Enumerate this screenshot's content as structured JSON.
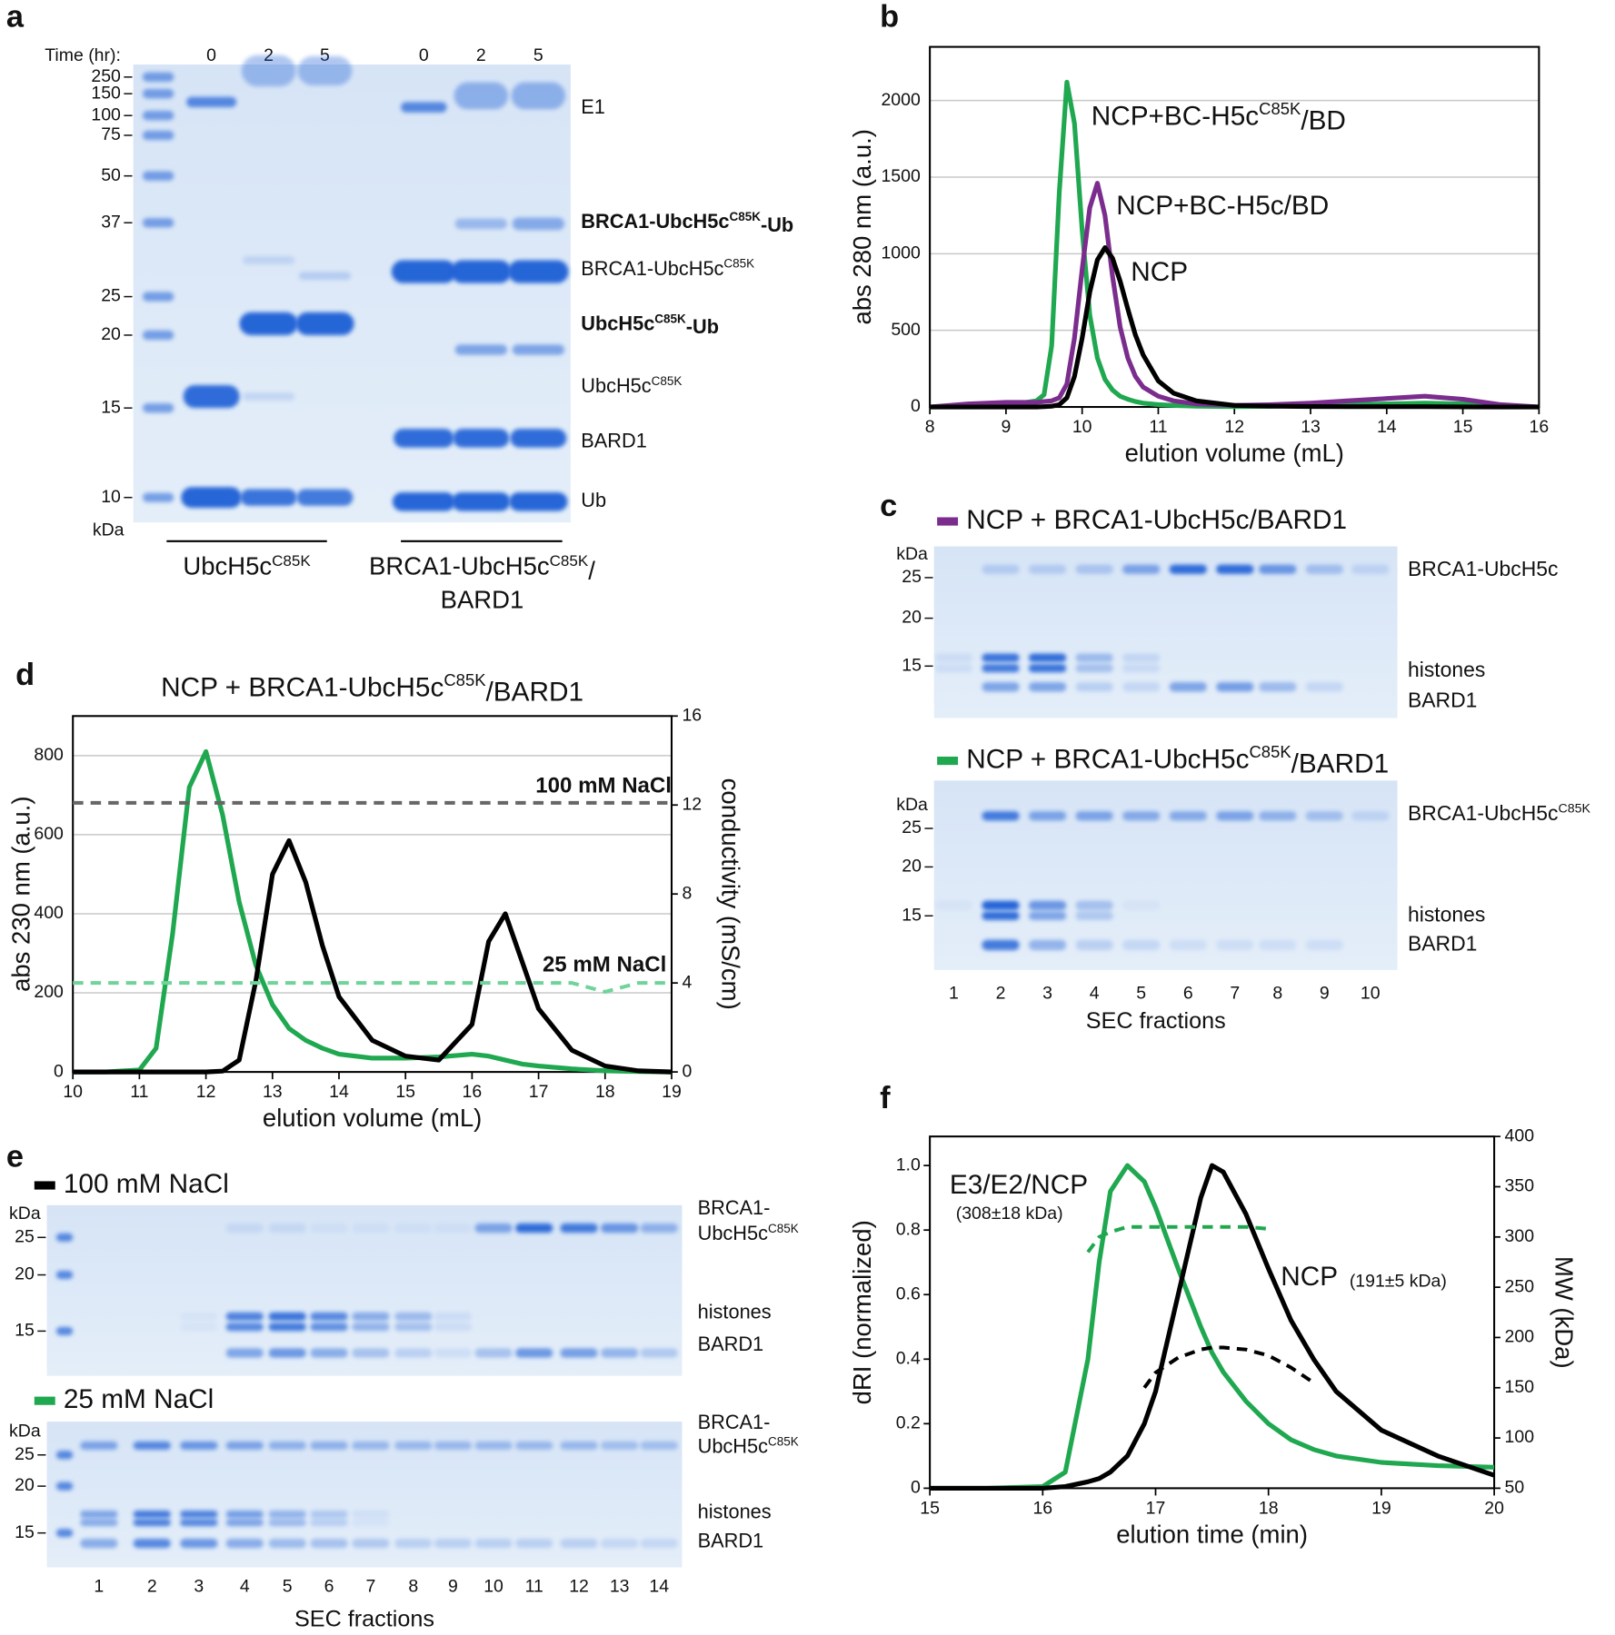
{
  "chart_data": [
    {
      "panel": "b",
      "type": "line",
      "ylabel": "abs 280 nm (a.u.)",
      "xlabel": "elution volume (mL)",
      "x": [
        8,
        8.5,
        9,
        9.2,
        9.4,
        9.5,
        9.6,
        9.7,
        9.8,
        9.9,
        10.0,
        10.1,
        10.2,
        10.3,
        10.4,
        10.5,
        10.6,
        10.7,
        10.8,
        11,
        11.2,
        11.5,
        12,
        12.5,
        13,
        13.5,
        14,
        14.5,
        15,
        15.5,
        16
      ],
      "xlim": [
        8,
        16
      ],
      "xticks": [
        8,
        9,
        10,
        11,
        12,
        13,
        14,
        15,
        16
      ],
      "ylim": [
        0,
        2350
      ],
      "yticks": [
        0,
        500,
        1000,
        1500,
        2000
      ],
      "grid": true,
      "series": [
        {
          "name": [
            "NCP+BC-H5c",
            {
              "sup": "C85K"
            },
            "/BD"
          ],
          "color": "#1fa84f",
          "values": [
            0,
            10,
            20,
            25,
            40,
            80,
            400,
            1400,
            2120,
            1850,
            1150,
            600,
            320,
            180,
            110,
            70,
            50,
            35,
            25,
            15,
            10,
            5,
            2,
            5,
            10,
            15,
            20,
            25,
            20,
            8,
            0
          ]
        },
        {
          "name": "NCP+BC-H5c/BD",
          "color": "#7b2d8e",
          "values": [
            0,
            20,
            30,
            30,
            30,
            35,
            40,
            60,
            150,
            450,
            900,
            1300,
            1460,
            1250,
            850,
            520,
            320,
            200,
            130,
            70,
            40,
            20,
            10,
            15,
            25,
            40,
            55,
            70,
            50,
            15,
            0
          ]
        },
        {
          "name": "NCP",
          "color": "#000000",
          "values": [
            0,
            0,
            0,
            0,
            0,
            2,
            5,
            15,
            60,
            200,
            450,
            750,
            960,
            1040,
            970,
            820,
            640,
            470,
            340,
            170,
            90,
            40,
            10,
            5,
            3,
            2,
            2,
            2,
            1,
            0,
            0
          ]
        }
      ]
    },
    {
      "panel": "d",
      "type": "line",
      "title": [
        "NCP + BRCA1-UbcH5c",
        {
          "sup": "C85K"
        },
        "/BARD1"
      ],
      "ylabel": "abs 230 nm (a.u.)",
      "y2label": "conductivity (mS/cm)",
      "xlabel": "elution volume (mL)",
      "x": [
        10,
        10.5,
        11,
        11.25,
        11.5,
        11.75,
        12,
        12.25,
        12.5,
        12.75,
        13,
        13.25,
        13.5,
        13.75,
        14,
        14.5,
        15,
        15.5,
        16,
        16.25,
        16.5,
        16.75,
        17,
        17.5,
        18,
        18.5,
        19
      ],
      "xlim": [
        10,
        19
      ],
      "xticks": [
        10,
        11,
        12,
        13,
        14,
        15,
        16,
        17,
        18,
        19
      ],
      "ylim": [
        0,
        900
      ],
      "yticks": [
        0,
        200,
        400,
        600,
        800
      ],
      "y2lim": [
        0,
        16
      ],
      "y2ticks": [
        0,
        4,
        8,
        12,
        16
      ],
      "grid": true,
      "series": [
        {
          "color": "#1fa84f",
          "values": [
            0,
            0,
            5,
            60,
            350,
            720,
            810,
            650,
            430,
            270,
            170,
            110,
            80,
            60,
            45,
            35,
            35,
            38,
            45,
            40,
            30,
            20,
            15,
            8,
            3,
            1,
            0
          ]
        },
        {
          "color": "#000000",
          "values": [
            0,
            0,
            0,
            0,
            0,
            0,
            0,
            2,
            30,
            230,
            500,
            585,
            480,
            320,
            190,
            80,
            40,
            30,
            120,
            330,
            400,
            280,
            160,
            55,
            15,
            3,
            0
          ]
        },
        {
          "name": "100 mM NaCl",
          "color": "#666666",
          "axis": "y2",
          "dash": true,
          "values": [
            12.1,
            12.1,
            12.1,
            12.1,
            12.1,
            12.1,
            12.1,
            12.1,
            12.1,
            12.1,
            12.1,
            12.1,
            12.1,
            12.1,
            12.1,
            12.1,
            12.1,
            12.1,
            12.1,
            12.1,
            12.1,
            12.1,
            12.1,
            12.1,
            12.1,
            12.1,
            12.1
          ]
        },
        {
          "name": "25 mM NaCl",
          "color": "#6fd49a",
          "axis": "y2",
          "dash": true,
          "values": [
            4,
            4,
            4,
            4,
            4,
            4,
            4,
            4,
            4,
            4,
            4,
            4,
            4,
            4,
            4,
            4,
            4,
            4,
            4,
            4,
            4,
            4,
            4,
            4,
            3.6,
            4,
            4
          ]
        }
      ]
    },
    {
      "panel": "f",
      "type": "line",
      "ylabel": "dRI (normalized)",
      "y2label": "MW (kDa)",
      "xlabel": "elution time (min)",
      "x": [
        15,
        15.5,
        16,
        16.2,
        16.4,
        16.5,
        16.6,
        16.75,
        16.9,
        17,
        17.2,
        17.4,
        17.5,
        17.6,
        17.8,
        18,
        18.2,
        18.4,
        18.6,
        19,
        19.5,
        20
      ],
      "xlim": [
        15,
        20
      ],
      "xticks": [
        15,
        16,
        17,
        18,
        19,
        20
      ],
      "ylim": [
        0,
        1.09
      ],
      "yticks": [
        0,
        0.2,
        0.4,
        0.6,
        0.8,
        {
          "value": 1,
          "label": "1.0"
        }
      ],
      "y2lim": [
        50,
        400
      ],
      "y2ticks": [
        50,
        100,
        150,
        200,
        250,
        300,
        350,
        400
      ],
      "annotations": [
        "(308±18 kDa)",
        "(191±5 kDa)"
      ],
      "series": [
        {
          "name": "E3/E2/NCP",
          "color": "#1fa84f",
          "values": [
            0,
            0,
            0.005,
            0.05,
            0.4,
            0.7,
            0.92,
            1.0,
            0.95,
            0.87,
            0.68,
            0.5,
            0.42,
            0.36,
            0.27,
            0.2,
            0.15,
            0.12,
            0.1,
            0.08,
            0.07,
            0.065
          ]
        },
        {
          "name": "NCP",
          "color": "#000000",
          "values": [
            0,
            0,
            0,
            0.005,
            0.02,
            0.03,
            0.05,
            0.1,
            0.2,
            0.3,
            0.6,
            0.9,
            1.0,
            0.98,
            0.85,
            0.68,
            0.52,
            0.4,
            0.3,
            0.18,
            0.1,
            0.04
          ]
        },
        {
          "color": "#1fa84f",
          "axis": "y2",
          "dash": true,
          "values": [
            null,
            null,
            null,
            null,
            285,
            300,
            305,
            310,
            310,
            310,
            310,
            310,
            310,
            310,
            310,
            308,
            null,
            null,
            null,
            null,
            null,
            null
          ]
        },
        {
          "color": "#000000",
          "axis": "y2",
          "dash": true,
          "values": [
            null,
            null,
            null,
            null,
            null,
            null,
            null,
            null,
            150,
            165,
            180,
            188,
            190,
            190,
            188,
            182,
            170,
            155,
            null,
            null,
            null,
            null
          ]
        }
      ]
    }
  ],
  "panel_a": {
    "letter": "a",
    "time_label": "Time (hr):",
    "times": [
      0,
      2,
      5,
      0,
      2,
      5
    ],
    "markers": [
      250,
      150,
      100,
      75,
      50,
      37,
      25,
      20,
      15,
      10
    ],
    "unit": "kDa",
    "bands": [
      {
        "text": "E1",
        "bold": false
      },
      {
        "text": [
          "BRCA1-UbcH5c",
          {
            "sup": "C85K"
          },
          "-Ub"
        ],
        "bold": true
      },
      {
        "text": [
          "BRCA1-UbcH5c",
          {
            "sup": "C85K"
          }
        ],
        "bold": false
      },
      {
        "text": [
          "UbcH5c",
          {
            "sup": "C85K"
          },
          "-Ub"
        ],
        "bold": true
      },
      {
        "text": [
          "UbcH5c",
          {
            "sup": "C85K"
          }
        ],
        "bold": false
      },
      {
        "text": "BARD1",
        "bold": false
      },
      {
        "text": "Ub",
        "bold": false
      }
    ],
    "groups": [
      [
        "UbcH5c",
        {
          "sup": "C85K"
        }
      ],
      [
        "BRCA1-UbcH5c",
        {
          "sup": "C85K"
        },
        "/"
      ],
      "BARD1"
    ]
  },
  "panel_c": {
    "letter": "c",
    "lanes": [
      1,
      2,
      3,
      4,
      5,
      6,
      7,
      8,
      9,
      10
    ],
    "xlabel": "SEC fractions",
    "gels": [
      {
        "legend": "NCP + BRCA1-UbcH5c/BARD1",
        "legend_color": "#7b2d8e",
        "unit": "kDa",
        "markers": [
          25,
          20,
          15
        ],
        "bands": [
          "BRCA1-UbcH5c",
          "histones",
          "BARD1"
        ]
      },
      {
        "legend": [
          "NCP + BRCA1-UbcH5c",
          {
            "sup": "C85K"
          },
          "/BARD1"
        ],
        "legend_color": "#1fa84f",
        "unit": "kDa",
        "markers": [
          25,
          20,
          15
        ],
        "bands": [
          [
            "BRCA1-UbcH5c",
            {
              "sup": "C85K"
            }
          ],
          "histones",
          "BARD1"
        ]
      }
    ]
  },
  "panel_e": {
    "letter": "e",
    "lanes": [
      1,
      2,
      3,
      4,
      5,
      6,
      7,
      8,
      9,
      10,
      11,
      12,
      13,
      14
    ],
    "xlabel": "SEC fractions",
    "gels": [
      {
        "legend": "100 mM NaCl",
        "legend_color": "#000000",
        "unit": "kDa",
        "markers": [
          25,
          20,
          15
        ],
        "bands": [
          "BRCA1-",
          [
            "UbcH5c",
            {
              "sup": "C85K"
            }
          ],
          "histones",
          "BARD1"
        ]
      },
      {
        "legend": "25 mM NaCl",
        "legend_color": "#1fa84f",
        "unit": "kDa",
        "markers": [
          25,
          20,
          15
        ],
        "bands": [
          "BRCA1-",
          [
            "UbcH5c",
            {
              "sup": "C85K"
            }
          ],
          "histones",
          "BARD1"
        ]
      }
    ]
  }
}
